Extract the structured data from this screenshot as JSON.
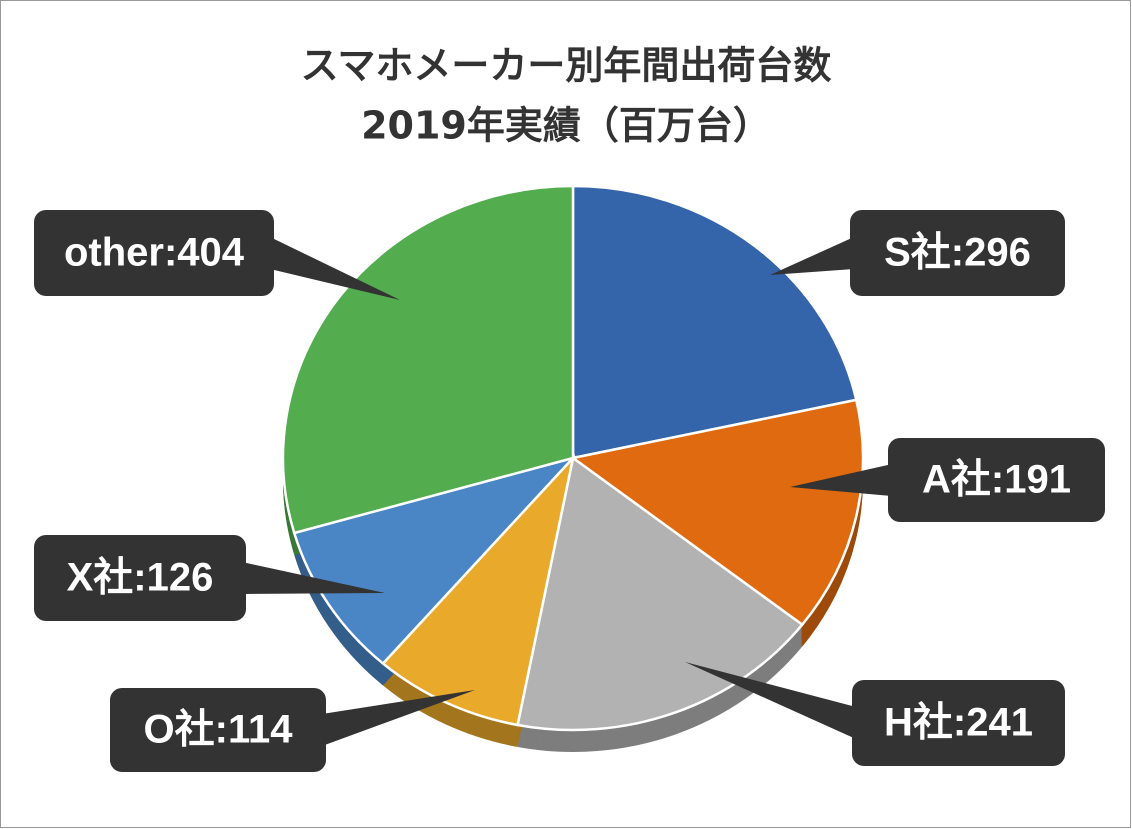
{
  "chart_data": {
    "type": "pie",
    "title": "スマホメーカー別年間出荷台数",
    "subtitle": "2019年実績（百万台）",
    "values": [
      296,
      191,
      241,
      114,
      126,
      404
    ],
    "value_labels": [
      "S社:296",
      "A社:191",
      "H社:241",
      "O社:114",
      "X社:126",
      "other:404"
    ],
    "colors": [
      "#3465ab",
      "#e06a10",
      "#b1b2b1",
      "#e9a92b",
      "#4a86c5",
      "#53ad4f"
    ]
  }
}
